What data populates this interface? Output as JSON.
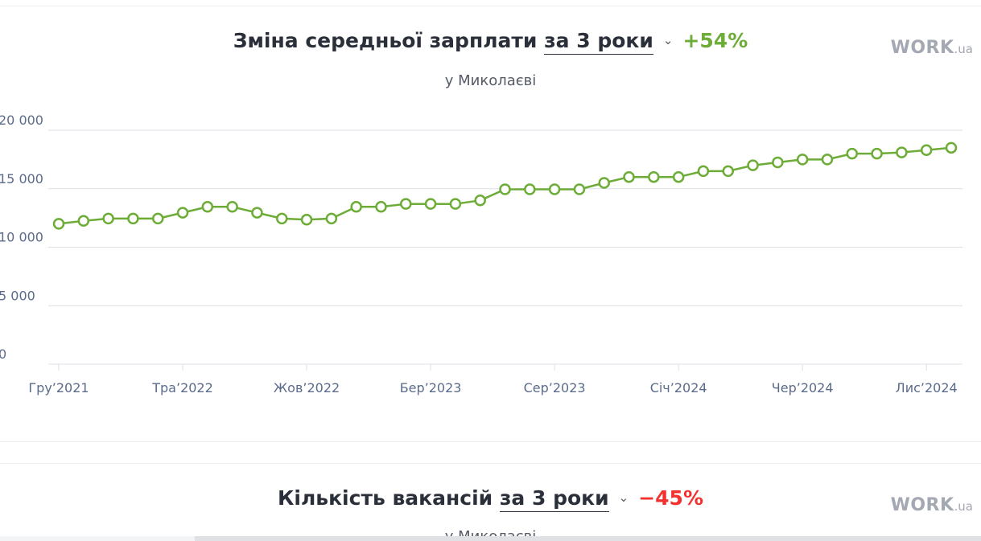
{
  "salary_card": {
    "title": "Зміна середньої зарплати",
    "period": "за 3 роки",
    "change": "+54%",
    "subtitle": "у Миколаєві",
    "brand_main": "WORK",
    "brand_suffix": ".ua"
  },
  "vacancies_card": {
    "title": "Кількість вакансій",
    "period": "за 3 роки",
    "change": "−45%",
    "subtitle": "у Миколаєві",
    "brand_main": "WORK",
    "brand_suffix": ".ua"
  },
  "colors": {
    "line": "#6cac37",
    "positive": "#6cac37",
    "negative": "#f2322e",
    "grid": "#dcdfe4",
    "axis_text": "#5b6b8c"
  },
  "icons": [
    "chevron-down-icon"
  ],
  "chart_data": {
    "type": "line",
    "title": "Зміна середньої зарплати за 3 роки",
    "subtitle": "у Миколаєві",
    "ylim": [
      0,
      20000
    ],
    "yticks": [
      0,
      5000,
      10000,
      15000,
      20000
    ],
    "ytick_labels": [
      "0",
      "5 000",
      "10 000",
      "15 000",
      "20 000"
    ],
    "xtick_labels": [
      "Гру’2021",
      "Тра’2022",
      "Жов’2022",
      "Бер’2023",
      "Сер’2023",
      "Січ’2024",
      "Чер’2024",
      "Лис’2024"
    ],
    "xtick_index": [
      0,
      5,
      10,
      15,
      20,
      25,
      30,
      35
    ],
    "grid": true,
    "series": [
      {
        "values": [
          12000,
          12250,
          12450,
          12450,
          12450,
          12950,
          13450,
          13450,
          12950,
          12450,
          12350,
          12450,
          13450,
          13450,
          13700,
          13700,
          13700,
          14000,
          14950,
          14950,
          14950,
          14950,
          15500,
          16000,
          16000,
          16000,
          16500,
          16500,
          17000,
          17250,
          17500,
          17500,
          18000,
          18000,
          18100,
          18300,
          18500
        ]
      }
    ]
  }
}
